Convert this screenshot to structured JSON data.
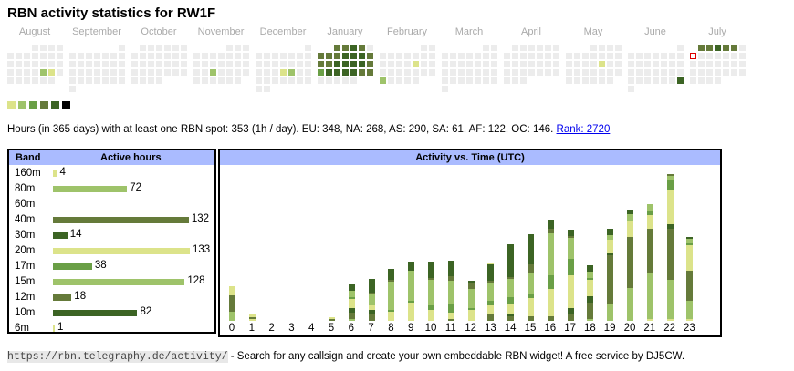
{
  "title": "RBN activity statistics for RW1F",
  "calendar": {
    "months": [
      "August",
      "September",
      "October",
      "November",
      "December",
      "January",
      "February",
      "March",
      "April",
      "May",
      "June",
      "July"
    ],
    "empty_color": "#ececec",
    "legend_colors": [
      "#dce38a",
      "#9ec36a",
      "#6a9f46",
      "#657a3a",
      "#3c6424",
      "#000000"
    ],
    "month_cells": [
      {
        "start": 3,
        "days": 31,
        "active": {
          "23": 2,
          "24": 1
        }
      },
      {
        "start": 6,
        "days": 30,
        "active": {}
      },
      {
        "start": 1,
        "days": 31,
        "active": {}
      },
      {
        "start": 4,
        "days": 30,
        "active": {
          "20": 2
        }
      },
      {
        "start": 6,
        "days": 31,
        "active": {
          "19": 1,
          "20": 2
        }
      },
      {
        "start": 2,
        "days": 31,
        "active": {
          "1": 4,
          "2": 4,
          "3": 5,
          "4": 4,
          "6": 4,
          "7": 4,
          "8": 4,
          "9": 5,
          "10": 5,
          "11": 5,
          "12": 4,
          "13": 4,
          "14": 4,
          "15": 5,
          "16": 5,
          "17": 5,
          "18": 5,
          "19": 4,
          "20": 3,
          "21": 5,
          "22": 5,
          "23": 5,
          "24": 5,
          "25": 4,
          "26": 4
        }
      },
      {
        "start": 5,
        "days": 28,
        "active": {
          "14": 1,
          "24": 2
        }
      },
      {
        "start": 5,
        "days": 31,
        "active": {}
      },
      {
        "start": 1,
        "days": 30,
        "active": {}
      },
      {
        "start": 3,
        "days": 31,
        "active": {
          "16": 1
        }
      },
      {
        "start": 6,
        "days": 30,
        "active": {
          "29": 5
        }
      },
      {
        "start": 1,
        "days": 31,
        "active": {
          "1": 4,
          "2": 4,
          "3": 5,
          "4": 4,
          "5": 4
        },
        "today": 7
      }
    ]
  },
  "summary": {
    "text": "Hours (in 365 days) with at least one RBN spot: 353 (1h / day). EU: 348, NA: 268, AS: 290, SA: 61, AF: 122, OC: 146. ",
    "rank_link": "Rank: 2720"
  },
  "bands": {
    "header_band": "Band",
    "header_active": "Active hours",
    "rows": [
      {
        "band": "160m",
        "hours": 4,
        "color": "#dce38a"
      },
      {
        "band": "80m",
        "hours": 72,
        "color": "#9ec36a"
      },
      {
        "band": "60m",
        "hours": 0,
        "color": "#6a9f46"
      },
      {
        "band": "40m",
        "hours": 132,
        "color": "#657a3a"
      },
      {
        "band": "30m",
        "hours": 14,
        "color": "#3c6424"
      },
      {
        "band": "20m",
        "hours": 133,
        "color": "#dce38a"
      },
      {
        "band": "17m",
        "hours": 38,
        "color": "#6a9f46"
      },
      {
        "band": "15m",
        "hours": 128,
        "color": "#9ec36a"
      },
      {
        "band": "12m",
        "hours": 18,
        "color": "#657a3a"
      },
      {
        "band": "10m",
        "hours": 82,
        "color": "#3c6424"
      },
      {
        "band": "6m",
        "hours": 1,
        "color": "#dce38a"
      }
    ]
  },
  "chart_data": {
    "type": "bar",
    "title": "Activity vs. Time (UTC)",
    "xlabel": "",
    "ylabel": "",
    "categories": [
      "0",
      "1",
      "2",
      "3",
      "4",
      "5",
      "6",
      "7",
      "8",
      "9",
      "10",
      "11",
      "12",
      "13",
      "14",
      "15",
      "16",
      "17",
      "18",
      "19",
      "20",
      "21",
      "22",
      "23"
    ],
    "stacked": true,
    "segments_bottom_up": [
      [
        [
          "#9ec36a",
          10
        ],
        [
          "#657a3a",
          18
        ],
        [
          "#dce38a",
          10
        ]
      ],
      [
        [
          "#dce38a",
          2
        ],
        [
          "#657a3a",
          2
        ],
        [
          "#dce38a",
          4
        ]
      ],
      [],
      [],
      [],
      [
        [
          "#657a3a",
          2
        ],
        [
          "#dce38a",
          2
        ]
      ],
      [
        [
          "#9ec36a",
          2
        ],
        [
          "#657a3a",
          7
        ],
        [
          "#3c6424",
          5
        ],
        [
          "#dce38a",
          10
        ],
        [
          "#6a9f46",
          2
        ],
        [
          "#9ec36a",
          7
        ],
        [
          "#3c6424",
          7
        ]
      ],
      [
        [
          "#657a3a",
          7
        ],
        [
          "#3c6424",
          5
        ],
        [
          "#dce38a",
          5
        ],
        [
          "#9ec36a",
          12
        ],
        [
          "#657a3a",
          2
        ],
        [
          "#3c6424",
          15
        ]
      ],
      [
        [
          "#dce38a",
          10
        ],
        [
          "#6a9f46",
          2
        ],
        [
          "#9ec36a",
          31
        ],
        [
          "#657a3a",
          2
        ],
        [
          "#3c6424",
          12
        ]
      ],
      [
        [
          "#dce38a",
          20
        ],
        [
          "#6a9f46",
          2
        ],
        [
          "#9ec36a",
          33
        ],
        [
          "#3c6424",
          10
        ]
      ],
      [
        [
          "#dce38a",
          12
        ],
        [
          "#6a9f46",
          5
        ],
        [
          "#9ec36a",
          28
        ],
        [
          "#657a3a",
          2
        ],
        [
          "#3c6424",
          18
        ]
      ],
      [
        [
          "#657a3a",
          2
        ],
        [
          "#dce38a",
          7
        ],
        [
          "#6a9f46",
          10
        ],
        [
          "#9ec36a",
          25
        ],
        [
          "#657a3a",
          5
        ],
        [
          "#3c6424",
          17
        ]
      ],
      [
        [
          "#dce38a",
          12
        ],
        [
          "#6a9f46",
          2
        ],
        [
          "#9ec36a",
          21
        ],
        [
          "#657a3a",
          7
        ],
        [
          "#3c6424",
          2
        ]
      ],
      [
        [
          "#657a3a",
          7
        ],
        [
          "#dce38a",
          10
        ],
        [
          "#6a9f46",
          5
        ],
        [
          "#9ec36a",
          20
        ],
        [
          "#657a3a",
          2
        ],
        [
          "#3c6424",
          18
        ],
        [
          "#dce38a",
          2
        ]
      ],
      [
        [
          "#657a3a",
          5
        ],
        [
          "#3c6424",
          2
        ],
        [
          "#dce38a",
          12
        ],
        [
          "#6a9f46",
          7
        ],
        [
          "#9ec36a",
          20
        ],
        [
          "#657a3a",
          2
        ],
        [
          "#3c6424",
          36
        ]
      ],
      [
        [
          "#657a3a",
          5
        ],
        [
          "#dce38a",
          20
        ],
        [
          "#6a9f46",
          5
        ],
        [
          "#9ec36a",
          22
        ],
        [
          "#657a3a",
          10
        ],
        [
          "#3c6424",
          33
        ]
      ],
      [
        [
          "#657a3a",
          5
        ],
        [
          "#dce38a",
          30
        ],
        [
          "#6a9f46",
          15
        ],
        [
          "#9ec36a",
          46
        ],
        [
          "#657a3a",
          5
        ],
        [
          "#3c6424",
          10
        ]
      ],
      [
        [
          "#657a3a",
          7
        ],
        [
          "#3c6424",
          7
        ],
        [
          "#dce38a",
          36
        ],
        [
          "#6a9f46",
          18
        ],
        [
          "#9ec36a",
          23
        ],
        [
          "#657a3a",
          2
        ],
        [
          "#3c6424",
          7
        ]
      ],
      [
        [
          "#9ec36a",
          2
        ],
        [
          "#657a3a",
          18
        ],
        [
          "#3c6424",
          7
        ],
        [
          "#dce38a",
          18
        ],
        [
          "#6a9f46",
          2
        ],
        [
          "#9ec36a",
          7
        ],
        [
          "#3c6424",
          7
        ]
      ],
      [
        [
          "#9ec36a",
          18
        ],
        [
          "#657a3a",
          54
        ],
        [
          "#3c6424",
          2
        ],
        [
          "#dce38a",
          15
        ],
        [
          "#9ec36a",
          5
        ],
        [
          "#3c6424",
          7
        ]
      ],
      [
        [
          "#9ec36a",
          36
        ],
        [
          "#657a3a",
          56
        ],
        [
          "#dce38a",
          18
        ],
        [
          "#9ec36a",
          7
        ],
        [
          "#3c6424",
          5
        ]
      ],
      [
        [
          "#dce38a",
          2
        ],
        [
          "#9ec36a",
          51
        ],
        [
          "#657a3a",
          48
        ],
        [
          "#dce38a",
          15
        ],
        [
          "#6a9f46",
          5
        ],
        [
          "#9ec36a",
          7
        ]
      ],
      [
        [
          "#dce38a",
          2
        ],
        [
          "#9ec36a",
          43
        ],
        [
          "#657a3a",
          56
        ],
        [
          "#3c6424",
          5
        ],
        [
          "#dce38a",
          38
        ],
        [
          "#6a9f46",
          10
        ],
        [
          "#9ec36a",
          5
        ],
        [
          "#657a3a",
          2
        ]
      ],
      [
        [
          "#dce38a",
          2
        ],
        [
          "#9ec36a",
          20
        ],
        [
          "#657a3a",
          33
        ],
        [
          "#dce38a",
          28
        ],
        [
          "#6a9f46",
          2
        ],
        [
          "#9ec36a",
          5
        ],
        [
          "#3c6424",
          2
        ]
      ]
    ]
  },
  "footer": {
    "url": "https://rbn.telegraphy.de/activity/",
    "text": " - Search for any callsign and create your own embeddable RBN widget! A free service by DJ5CW."
  }
}
